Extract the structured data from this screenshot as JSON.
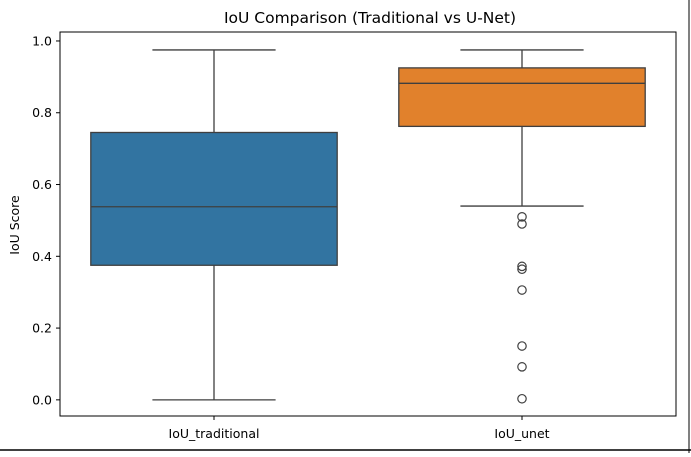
{
  "chart_data": {
    "type": "box",
    "title": "IoU Comparison (Traditional vs U-Net)",
    "xlabel": "",
    "ylabel": "IoU Score",
    "ylim": [
      -0.045,
      1.025
    ],
    "yticks": [
      0.0,
      0.2,
      0.4,
      0.6,
      0.8,
      1.0
    ],
    "ytick_labels": [
      "0.0",
      "0.2",
      "0.4",
      "0.6",
      "0.8",
      "1.0"
    ],
    "grid": false,
    "categories": [
      "IoU_traditional",
      "IoU_unet"
    ],
    "series": [
      {
        "category": "IoU_traditional",
        "color": "#3274a1",
        "min": 0.0,
        "q1": 0.375,
        "median": 0.538,
        "q3": 0.745,
        "max": 0.975,
        "outliers": []
      },
      {
        "category": "IoU_unet",
        "color": "#e1812c",
        "min": 0.54,
        "q1": 0.762,
        "median": 0.882,
        "q3": 0.925,
        "max": 0.975,
        "outliers": [
          0.51,
          0.49,
          0.372,
          0.364,
          0.306,
          0.15,
          0.092,
          0.003
        ]
      }
    ],
    "colors": {
      "axis": "#000000",
      "whisker": "#3f3f3f",
      "box_edge": "#3f3f3f"
    }
  }
}
